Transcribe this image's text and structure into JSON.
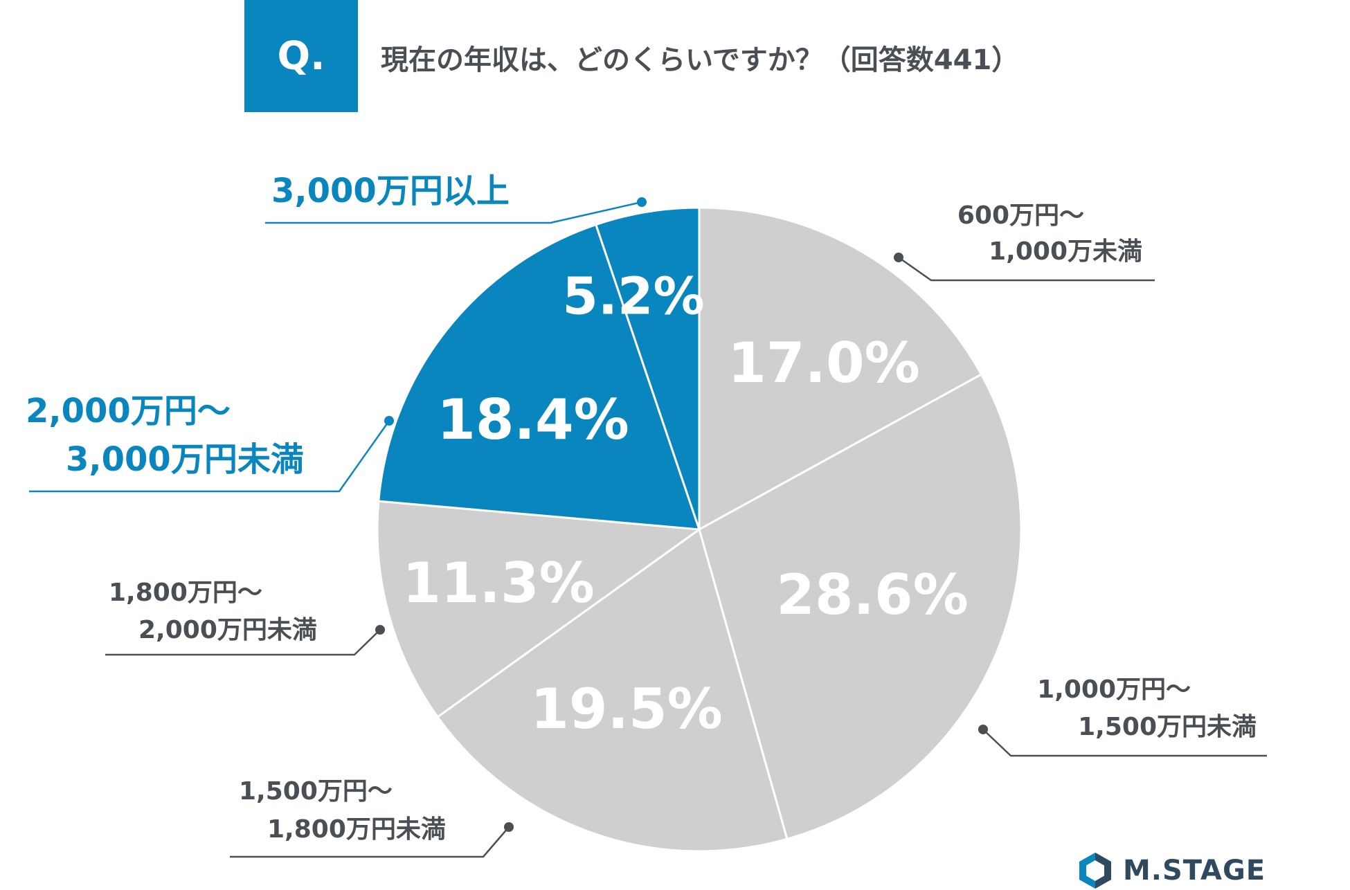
{
  "header": {
    "q_label": "Q.",
    "question": "現在の年収は、どのくらいですか？（回答数441）"
  },
  "colors": {
    "accent": "#0a86bf",
    "gray": "#d0cfcf",
    "dark_text": "#4a4f55",
    "line": "#4a4f55"
  },
  "chart_data": {
    "type": "pie",
    "start_angle_deg": 0,
    "direction": "clockwise",
    "slices": [
      {
        "label": "600万円〜\n1,000万未満",
        "value": 17.0,
        "value_label": "17.0%",
        "highlight": false
      },
      {
        "label": "1,000万円〜\n1,500万円未満",
        "value": 28.6,
        "value_label": "28.6%",
        "highlight": false
      },
      {
        "label": "1,500万円〜\n1,800万円未満",
        "value": 19.5,
        "value_label": "19.5%",
        "highlight": false
      },
      {
        "label": "1,800万円〜\n2,000万円未満",
        "value": 11.3,
        "value_label": "11.3%",
        "highlight": false
      },
      {
        "label": "2,000万円〜\n3,000万円未満",
        "value": 18.4,
        "value_label": "18.4%",
        "highlight": true
      },
      {
        "label": "3,000万円以上",
        "value": 5.2,
        "value_label": "5.2%",
        "highlight": true
      }
    ]
  },
  "logo": {
    "text": "M.STAGE"
  }
}
